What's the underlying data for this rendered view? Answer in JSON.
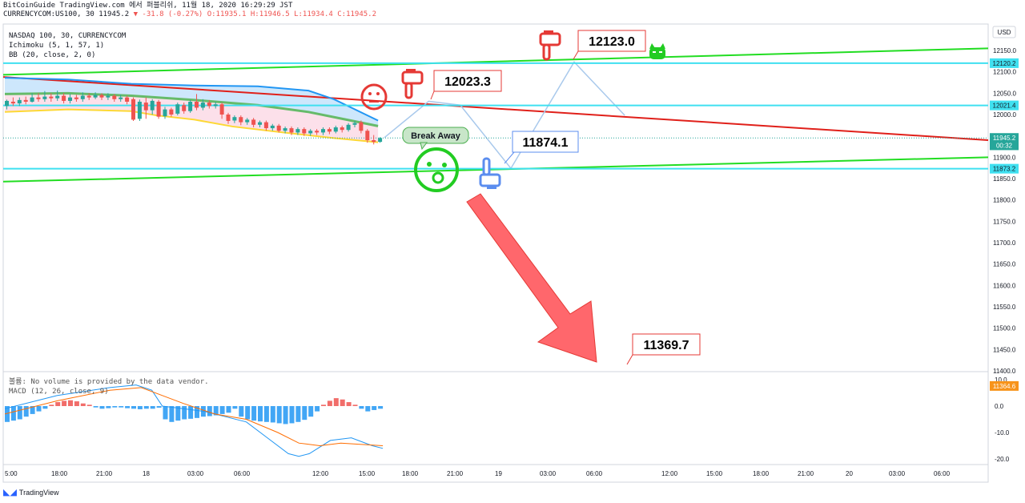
{
  "header": {
    "line1": "BitCoinGuide TradingView.com 에서 퍼블리쉬, 11월 18, 2020 16:29:29 JST",
    "symbol": "CURRENCYCOM:US100, 30",
    "last": "11945.2",
    "change": "-31.8 (-0.27%)",
    "ohlc": "O:11935.1 H:11946.5 L:11934.4 C:11945.2"
  },
  "legend": {
    "line1": "NASDAQ 100, 30, CURRENCYCOM",
    "line2": "Ichimoku (5, 1, 57, 1)",
    "line3": "BB (20, close, 2, 0)"
  },
  "macd_legend": {
    "volume": "볼륨: No volume is provided by the data vendor.",
    "macd": "MACD (12, 26, close, 9)"
  },
  "currency": "USD",
  "colors": {
    "green_line": "#22dd22",
    "red_line": "#e0201a",
    "cyan_line": "#3fe0f0",
    "orange_line": "#f7931a",
    "up_candle": "#26a69a",
    "down_candle": "#ef5350",
    "arrow_fill": "#ff5a5f",
    "path_line": "#a9c9ec"
  },
  "annotations": {
    "top_target": "12123.0",
    "mid_target": "12023.3",
    "low_target": "11874.1",
    "final_target": "11369.7",
    "bubble": "Break Away"
  },
  "footer": {
    "brand": "TradingView"
  },
  "chart_data": {
    "type": "line",
    "title": "NASDAQ 100, 30, CURRENCYCOM",
    "y_range": [
      11350,
      12170
    ],
    "y_ticks": [
      "12150.0",
      "12100.0",
      "12050.0",
      "12000.0",
      "11950.0",
      "11900.0",
      "11850.0",
      "11800.0",
      "11750.0",
      "11700.0",
      "11650.0",
      "11600.0",
      "11550.0",
      "11500.0",
      "11450.0",
      "11400.0"
    ],
    "price_badges": [
      {
        "label": "12120.2",
        "value": 12120.2,
        "kind": "cyan"
      },
      {
        "label": "12021.4",
        "value": 12021.4,
        "kind": "cyan"
      },
      {
        "label": "11945.2",
        "value": 11945.2,
        "kind": "last"
      },
      {
        "label": "00:32",
        "value": 11928,
        "kind": "timer"
      },
      {
        "label": "11873.2",
        "value": 11873.2,
        "kind": "cyan"
      },
      {
        "label": "11364.6",
        "value": 11364.6,
        "kind": "orange"
      }
    ],
    "x_ticks": [
      "5:00",
      "18:00",
      "21:00",
      "18",
      "03:00",
      "06:00",
      "12:00",
      "15:00",
      "18:00",
      "21:00",
      "19",
      "03:00",
      "06:00",
      "12:00",
      "15:00",
      "18:00",
      "21:00",
      "20",
      "03:00",
      "06:00"
    ],
    "macd_ticks": [
      "10.0",
      "0.0",
      "-10.0",
      "-20.0"
    ],
    "macd_range": [
      -22,
      12
    ],
    "candles": [
      [
        12020,
        12032,
        12012,
        12035
      ],
      [
        12030,
        12026,
        12020,
        12040
      ],
      [
        12026,
        12034,
        12020,
        12040
      ],
      [
        12034,
        12030,
        12024,
        12042
      ],
      [
        12030,
        12040,
        12028,
        12050
      ],
      [
        12040,
        12036,
        12030,
        12050
      ],
      [
        12036,
        12042,
        12030,
        12055
      ],
      [
        12042,
        12038,
        12030,
        12050
      ],
      [
        12038,
        12044,
        12032,
        12056
      ],
      [
        12044,
        12032,
        12026,
        12050
      ],
      [
        12032,
        12040,
        12026,
        12048
      ],
      [
        12040,
        12036,
        12030,
        12046
      ],
      [
        12036,
        12044,
        12030,
        12052
      ],
      [
        12044,
        12040,
        12034,
        12050
      ],
      [
        12040,
        12046,
        12036,
        12052
      ],
      [
        12046,
        12040,
        12034,
        12050
      ],
      [
        12040,
        12044,
        12034,
        12050
      ],
      [
        12044,
        12036,
        12030,
        12048
      ],
      [
        12036,
        12040,
        12030,
        12046
      ],
      [
        12040,
        12030,
        12024,
        12044
      ],
      [
        12036,
        11988,
        11985,
        12040
      ],
      [
        11990,
        12030,
        11985,
        12035
      ],
      [
        12028,
        12010,
        11990,
        12040
      ],
      [
        12010,
        12032,
        12000,
        12036
      ],
      [
        12030,
        11995,
        11990,
        12034
      ],
      [
        11996,
        12012,
        11990,
        12018
      ],
      [
        12012,
        12000,
        11995,
        12016
      ],
      [
        12002,
        12024,
        11998,
        12028
      ],
      [
        12022,
        12008,
        12002,
        12028
      ],
      [
        12008,
        12030,
        12004,
        12034
      ],
      [
        12030,
        12016,
        12010,
        12048
      ],
      [
        12016,
        12028,
        12010,
        12036
      ],
      [
        12028,
        12020,
        12014,
        12034
      ],
      [
        12020,
        12024,
        12014,
        12030
      ],
      [
        12024,
        12000,
        11990,
        12028
      ],
      [
        12000,
        11985,
        11978,
        12004
      ],
      [
        11986,
        11994,
        11980,
        11998
      ],
      [
        11994,
        11982,
        11975,
        11998
      ],
      [
        11982,
        11988,
        11976,
        11992
      ],
      [
        11988,
        11976,
        11970,
        11992
      ],
      [
        11976,
        11982,
        11970,
        11986
      ],
      [
        11982,
        11968,
        11962,
        11986
      ],
      [
        11968,
        11974,
        11962,
        11978
      ],
      [
        11974,
        11962,
        11958,
        11978
      ],
      [
        11962,
        11968,
        11956,
        11972
      ],
      [
        11968,
        11958,
        11952,
        11972
      ],
      [
        11958,
        11966,
        11952,
        11970
      ],
      [
        11966,
        11956,
        11950,
        11970
      ],
      [
        11956,
        11962,
        11950,
        11966
      ],
      [
        11962,
        11958,
        11952,
        11966
      ],
      [
        11958,
        11966,
        11952,
        11970
      ],
      [
        11966,
        11960,
        11954,
        11970
      ],
      [
        11960,
        11970,
        11956,
        11974
      ],
      [
        11970,
        11964,
        11958,
        11974
      ],
      [
        11964,
        11976,
        11960,
        11980
      ],
      [
        11976,
        11980,
        11970,
        11985
      ],
      [
        11982,
        11962,
        11956,
        11986
      ],
      [
        11962,
        11940,
        11934,
        11966
      ],
      [
        11940,
        11936,
        11930,
        11952
      ],
      [
        11936,
        11945,
        11934,
        11947
      ]
    ],
    "series": [
      {
        "name": "",
        "kind": "resistance-up",
        "points": [
          [
            -5,
            12093
          ],
          [
            100,
            12155
          ]
        ]
      },
      {
        "name": "",
        "kind": "support-up",
        "points": [
          [
            -5,
            11843
          ],
          [
            100,
            11900
          ]
        ]
      },
      {
        "name": "",
        "kind": "downtrend",
        "points": [
          [
            -5,
            12088
          ],
          [
            100,
            11940
          ]
        ]
      },
      {
        "name": "",
        "kind": "bb-upper",
        "points": [
          [
            0,
            12086
          ],
          [
            10,
            12082
          ],
          [
            20,
            12072
          ],
          [
            30,
            12068
          ],
          [
            40,
            12066
          ],
          [
            48,
            12056
          ],
          [
            52,
            12036
          ],
          [
            59,
            11986
          ]
        ]
      },
      {
        "name": "",
        "kind": "bb-lower",
        "points": [
          [
            0,
            12006
          ],
          [
            10,
            12012
          ],
          [
            20,
            12008
          ],
          [
            24,
            11998
          ],
          [
            30,
            11988
          ],
          [
            36,
            11972
          ],
          [
            44,
            11958
          ],
          [
            52,
            11945
          ],
          [
            59,
            11935
          ]
        ]
      },
      {
        "name": "",
        "kind": "bb-basis",
        "points": [
          [
            0,
            12048
          ],
          [
            10,
            12050
          ],
          [
            20,
            12044
          ],
          [
            30,
            12034
          ],
          [
            40,
            12022
          ],
          [
            48,
            12006
          ],
          [
            54,
            11988
          ],
          [
            59,
            11973
          ]
        ]
      },
      {
        "name": "",
        "kind": "projection",
        "points": [
          [
            60,
            11946
          ],
          [
            67,
            12031
          ],
          [
            72,
            12022
          ],
          [
            80,
            11874
          ],
          [
            90,
            12123
          ],
          [
            98,
            11998
          ]
        ]
      }
    ],
    "macd_hist": [
      -6,
      -5.5,
      -5,
      -4,
      -3,
      -2,
      -1,
      0.5,
      1.5,
      2,
      2.2,
      1.8,
      1,
      0.5,
      -0.5,
      -1,
      -0.8,
      -0.5,
      -0.5,
      -0.8,
      -1,
      -1.2,
      -1,
      -1,
      -0.6,
      -5,
      -6,
      -5.5,
      -5,
      -4.8,
      -4.5,
      -4,
      -3.8,
      -3.5,
      -3,
      -2.5,
      -1,
      -4,
      -5,
      -5.5,
      -5.8,
      -6,
      -6.2,
      -6.5,
      -6.8,
      -6.5,
      -6,
      -5.2,
      -4,
      -2,
      0.5,
      2,
      3,
      2.5,
      1.5,
      0.5,
      -1,
      -2,
      -1.5,
      -1
    ],
    "macd_line": [
      [
        0,
        -1
      ],
      [
        10,
        4
      ],
      [
        20,
        7
      ],
      [
        25,
        8
      ],
      [
        28,
        6
      ],
      [
        30,
        0
      ],
      [
        34,
        -1
      ],
      [
        38,
        -2
      ],
      [
        42,
        -4
      ],
      [
        46,
        -6
      ],
      [
        50,
        -12
      ],
      [
        54,
        -18
      ],
      [
        56,
        -19
      ],
      [
        58,
        -18
      ],
      [
        62,
        -13
      ],
      [
        66,
        -12
      ],
      [
        70,
        -15
      ],
      [
        72,
        -16
      ]
    ],
    "signal_line": [
      [
        0,
        -3
      ],
      [
        10,
        2
      ],
      [
        20,
        6
      ],
      [
        26,
        7
      ],
      [
        30,
        4
      ],
      [
        34,
        1
      ],
      [
        40,
        -3
      ],
      [
        46,
        -5
      ],
      [
        52,
        -10
      ],
      [
        56,
        -14
      ],
      [
        60,
        -15
      ],
      [
        64,
        -14
      ],
      [
        68,
        -14.5
      ],
      [
        72,
        -15
      ]
    ]
  }
}
